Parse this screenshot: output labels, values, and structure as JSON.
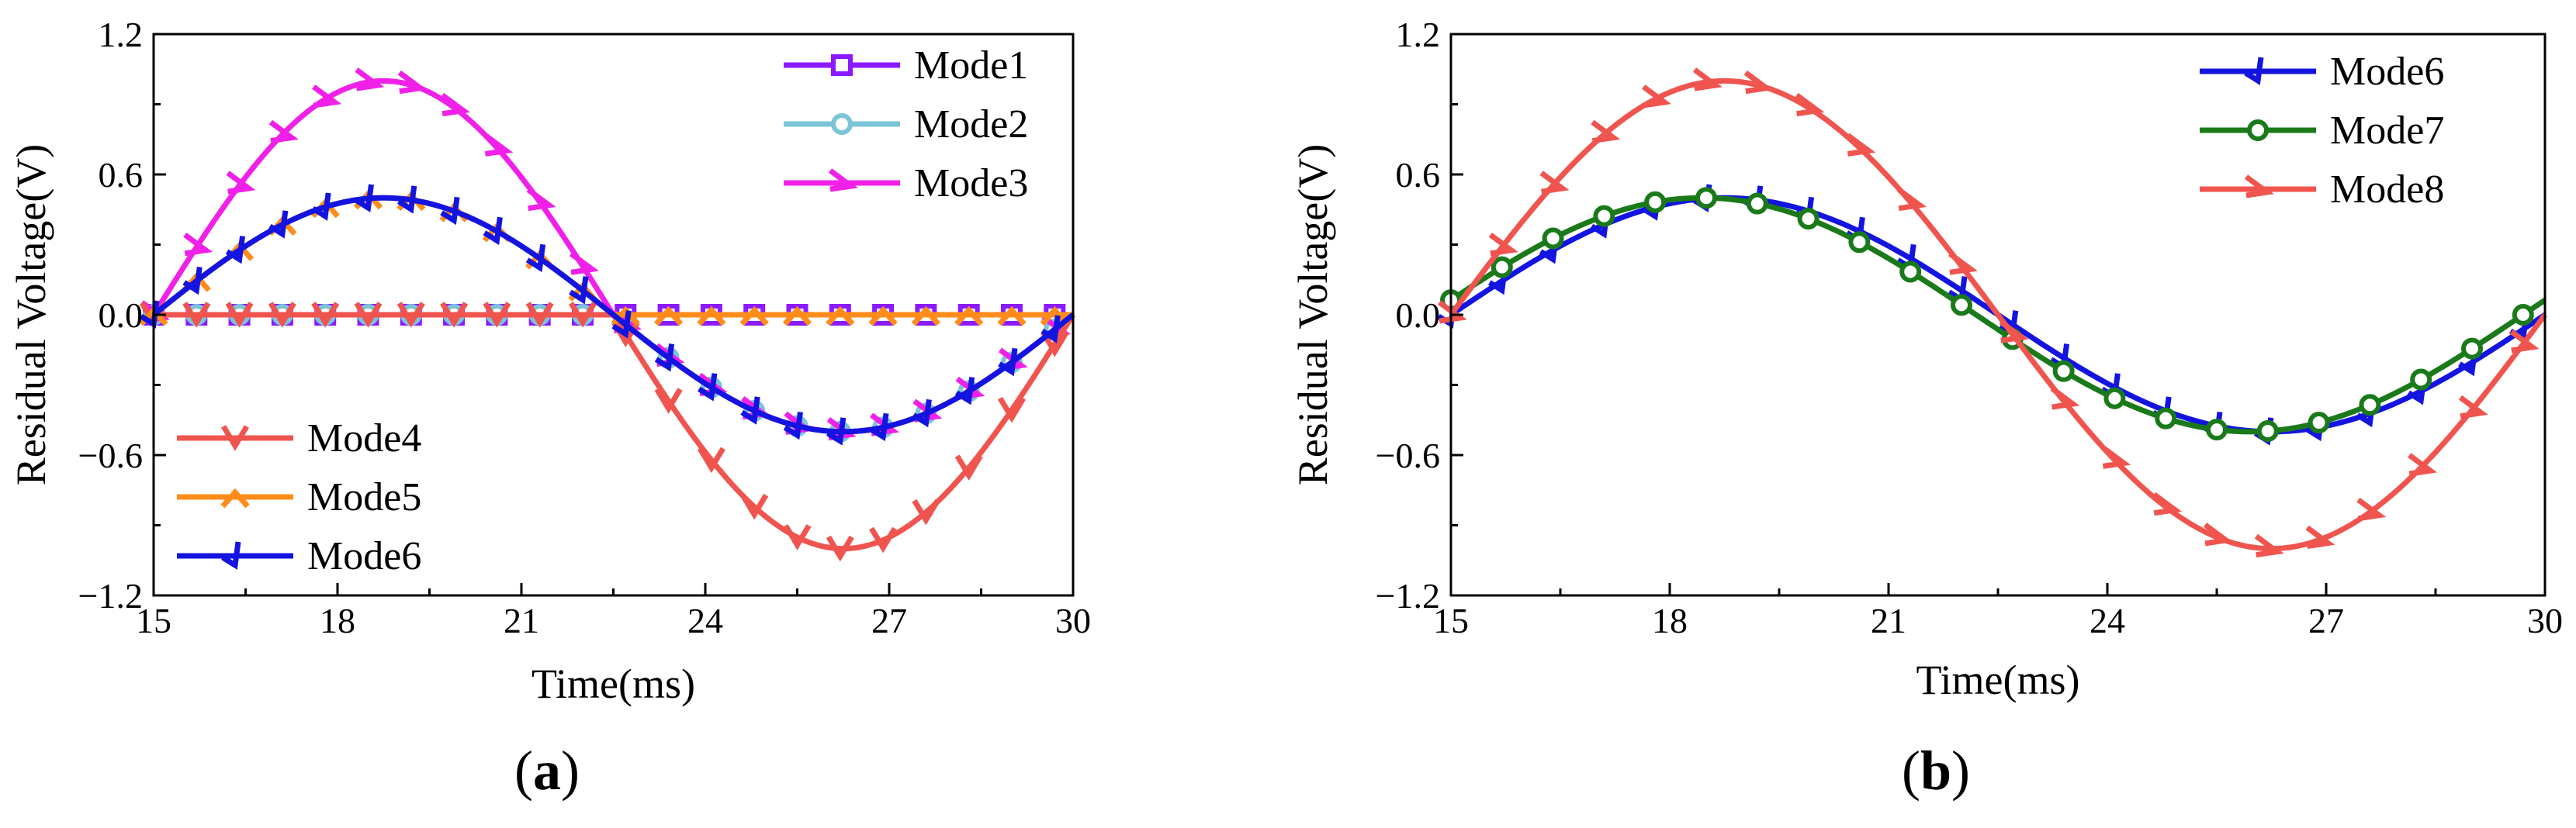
{
  "chart_data": [
    {
      "type": "line",
      "panel": "a",
      "caption_open": "(",
      "caption_letter": "a",
      "caption_close": ")",
      "xlabel": "Time(ms)",
      "ylabel": "Residual Voltage(V)",
      "xlim": [
        15,
        30
      ],
      "ylim": [
        -1.2,
        1.2
      ],
      "xticks": [
        15,
        18,
        21,
        24,
        27,
        30
      ],
      "xtick_labels": [
        "15",
        "18",
        "21",
        "24",
        "27",
        "30"
      ],
      "yticks": [
        -1.2,
        -0.6,
        0.0,
        0.6,
        1.2
      ],
      "ytick_labels": [
        "−1.2",
        "−0.6",
        "0.0",
        "0.6",
        "1.2"
      ],
      "series": [
        {
          "name": "Mode1",
          "color": "#8B1AFF",
          "marker": "square",
          "func": "zero"
        },
        {
          "name": "Mode2",
          "color": "#7CC4D8",
          "marker": "circle",
          "func": "halfsine_neg",
          "amplitude": 0.5
        },
        {
          "name": "Mode3",
          "color": "#F020E8",
          "marker": "tri-right",
          "func": "halfsine_pos_split",
          "amplitude": 1.0,
          "neg_amplitude": 0.5
        },
        {
          "name": "Mode4",
          "color": "#F0544E",
          "marker": "tri-down",
          "func": "halfsine_neg_only",
          "amplitude": 1.0
        },
        {
          "name": "Mode5",
          "color": "#FF8C1A",
          "marker": "diamond",
          "func": "halfsine_pos_only",
          "amplitude": 0.5
        },
        {
          "name": "Mode6",
          "color": "#1414E0",
          "marker": "tri-left",
          "func": "sine",
          "amplitude": 0.5
        }
      ],
      "legend_upper": [
        "Mode1",
        "Mode2",
        "Mode3"
      ],
      "legend_lower": [
        "Mode4",
        "Mode5",
        "Mode6"
      ]
    },
    {
      "type": "line",
      "panel": "b",
      "caption_open": "(",
      "caption_letter": "b",
      "caption_close": ")",
      "xlabel": "Time(ms)",
      "ylabel": "Residual Voltage(V)",
      "xlim": [
        15,
        30
      ],
      "ylim": [
        -1.2,
        1.2
      ],
      "xticks": [
        15,
        18,
        21,
        24,
        27,
        30
      ],
      "xtick_labels": [
        "15",
        "18",
        "21",
        "24",
        "27",
        "30"
      ],
      "yticks": [
        -1.2,
        -0.6,
        0.0,
        0.6,
        1.2
      ],
      "ytick_labels": [
        "−1.2",
        "−0.6",
        "0.0",
        "0.6",
        "1.2"
      ],
      "series": [
        {
          "name": "Mode6",
          "color": "#1414E0",
          "marker": "tri-left",
          "func": "sine",
          "amplitude": 0.5
        },
        {
          "name": "Mode7",
          "color": "#1A7A1A",
          "marker": "circle",
          "func": "sine_shift",
          "amplitude": 0.5,
          "shift_ms": -0.3
        },
        {
          "name": "Mode8",
          "color": "#F0544E",
          "marker": "tri-right",
          "func": "sine",
          "amplitude": 1.0
        }
      ],
      "legend_upper": [
        "Mode6",
        "Mode7",
        "Mode8"
      ],
      "legend_lower": []
    }
  ]
}
